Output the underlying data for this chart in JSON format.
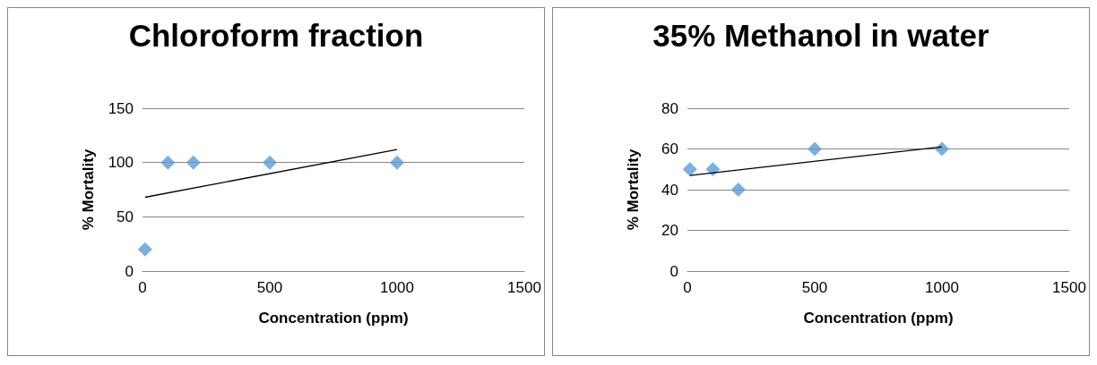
{
  "chart_data": [
    {
      "type": "scatter",
      "title": "Chloroform fraction",
      "xlabel": "Concentration (ppm)",
      "ylabel": "% Mortality",
      "xlim": [
        0,
        1500
      ],
      "xticks": [
        0,
        500,
        1000,
        1500
      ],
      "ylim": [
        0,
        150
      ],
      "yticks": [
        0,
        50,
        100,
        150
      ],
      "grid": "y",
      "marker": "diamond",
      "series": [
        {
          "color": "#5b9bd5",
          "x": [
            10,
            100,
            200,
            500,
            1000
          ],
          "values": [
            20,
            100,
            100,
            100,
            100
          ]
        },
        {
          "type": "line",
          "color": "#000000",
          "marker": "none",
          "x": [
            10,
            1000
          ],
          "values": [
            68,
            112
          ]
        }
      ]
    },
    {
      "type": "scatter",
      "title": "35% Methanol in water",
      "xlabel": "Concentration (ppm)",
      "ylabel": "% Mortality",
      "xlim": [
        0,
        1500
      ],
      "xticks": [
        0,
        500,
        1000,
        1500
      ],
      "ylim": [
        0,
        80
      ],
      "yticks": [
        0,
        20,
        40,
        60,
        80
      ],
      "grid": "y",
      "marker": "diamond",
      "series": [
        {
          "color": "#5b9bd5",
          "x": [
            10,
            100,
            200,
            500,
            1000
          ],
          "values": [
            50,
            50,
            40,
            60,
            60
          ]
        },
        {
          "type": "line",
          "color": "#000000",
          "marker": "none",
          "x": [
            10,
            1000
          ],
          "values": [
            47,
            61
          ]
        }
      ]
    }
  ]
}
